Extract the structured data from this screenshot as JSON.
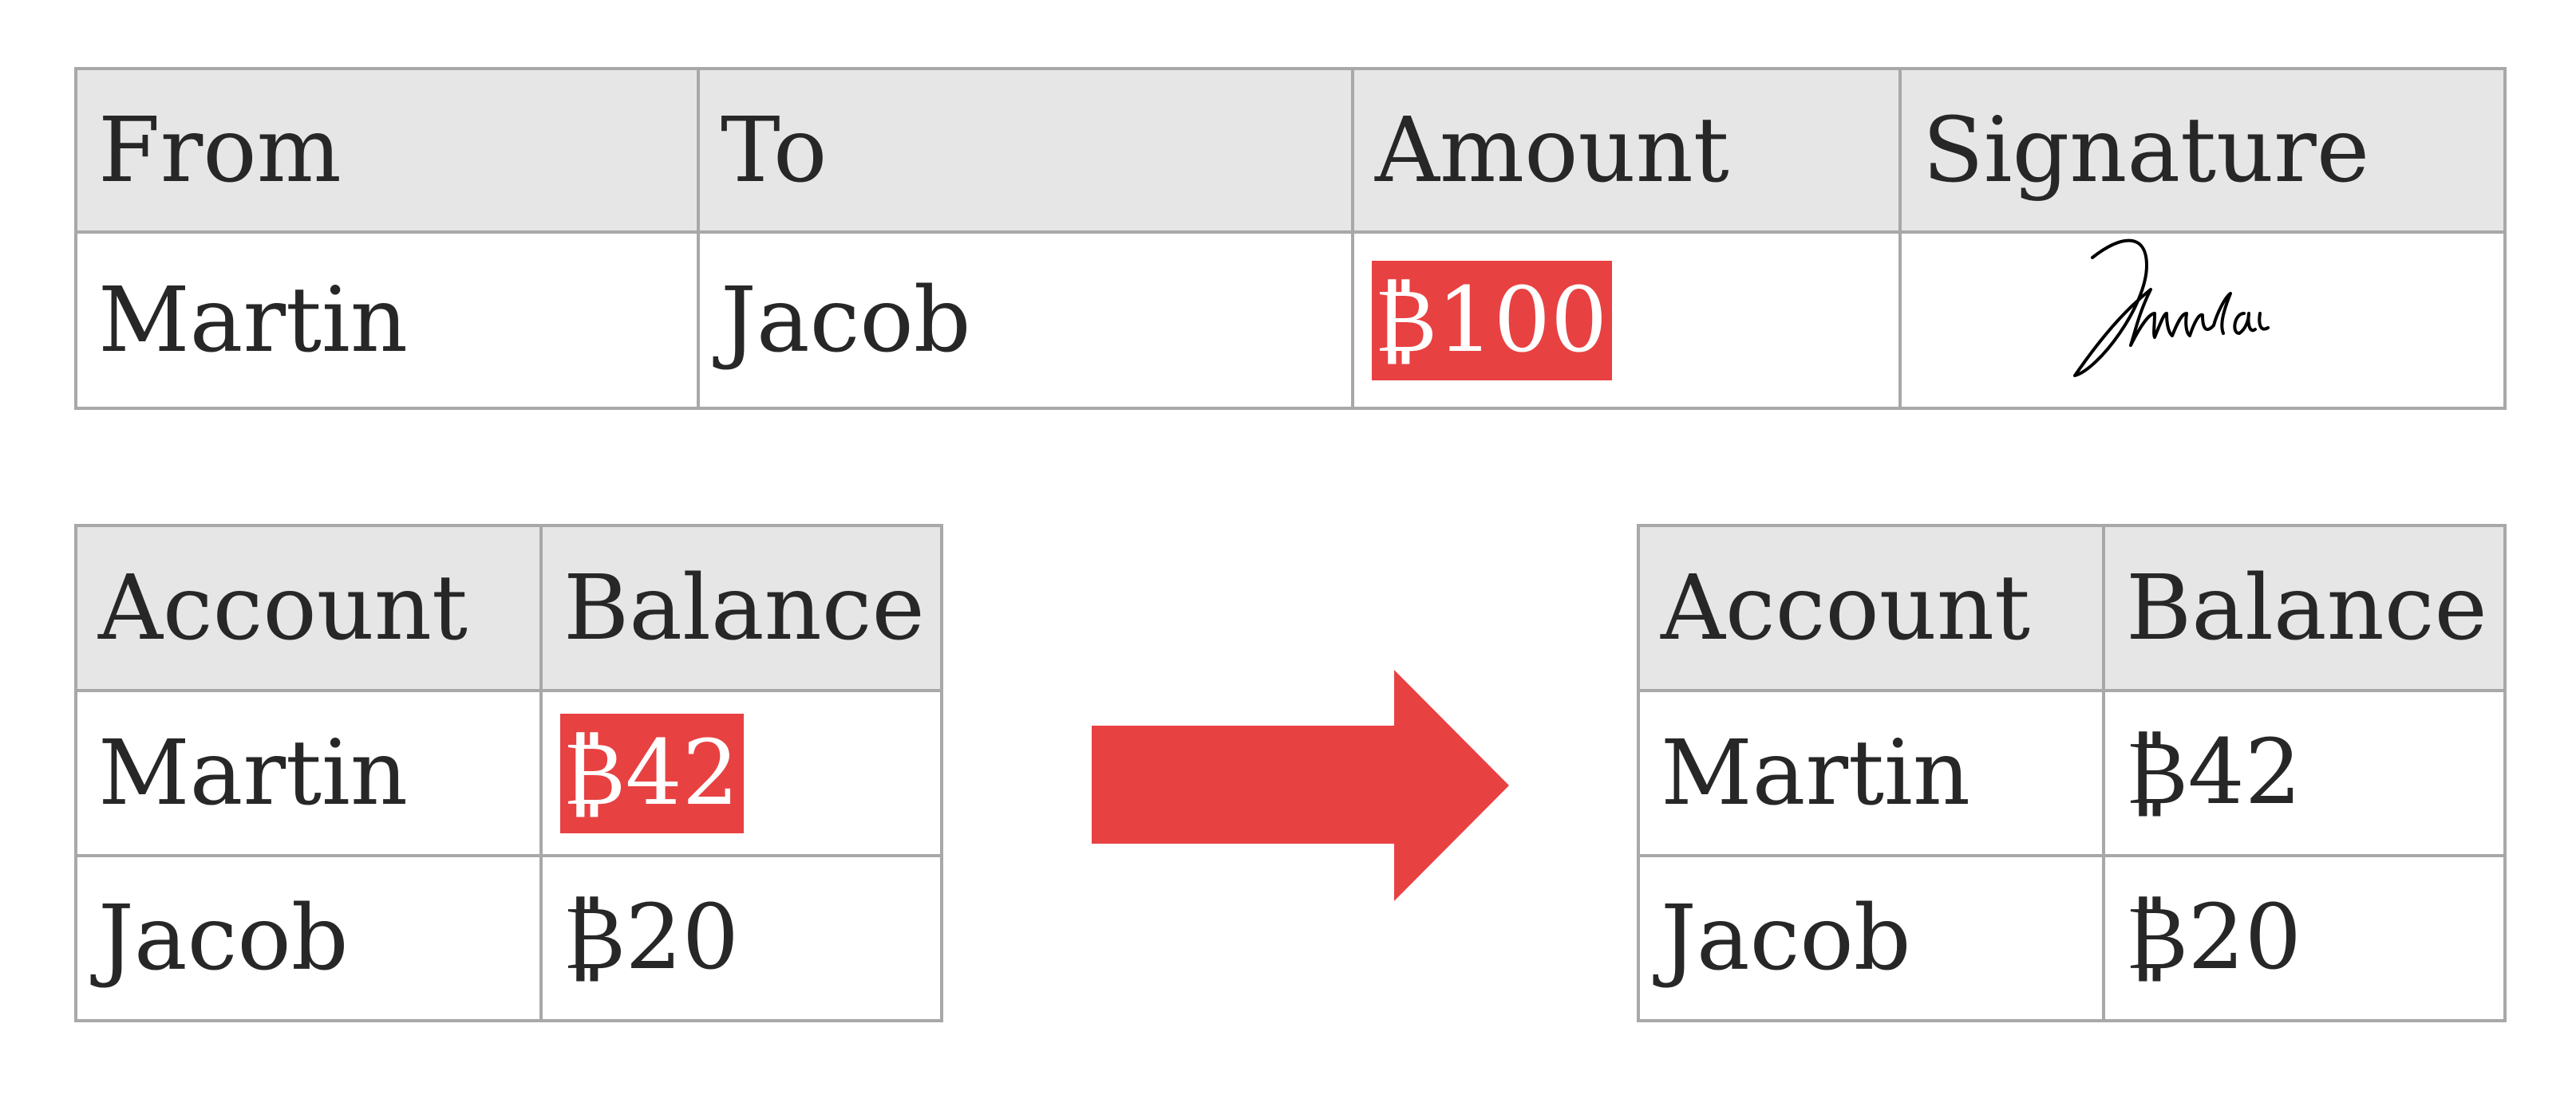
{
  "transaction": {
    "headers": [
      "From",
      "To",
      "Amount",
      "Signature"
    ],
    "row": {
      "from": "Martin",
      "to": "Jacob",
      "amount": "₿100",
      "signature": "handwritten-signature"
    },
    "amount_highlighted": true
  },
  "balances_before": {
    "headers": [
      "Account",
      "Balance"
    ],
    "rows": [
      {
        "account": "Martin",
        "balance": "₿42",
        "highlighted": true
      },
      {
        "account": "Jacob",
        "balance": "₿20",
        "highlighted": false
      }
    ]
  },
  "balances_after": {
    "headers": [
      "Account",
      "Balance"
    ],
    "rows": [
      {
        "account": "Martin",
        "balance": "₿42"
      },
      {
        "account": "Jacob",
        "balance": "₿20"
      }
    ]
  },
  "arrow": {
    "direction": "right",
    "icon": "arrow-right-icon"
  },
  "colors": {
    "highlight": "#e84142",
    "header_bg": "#e6e6e6",
    "border": "#a8a8a8",
    "text": "#272727"
  }
}
